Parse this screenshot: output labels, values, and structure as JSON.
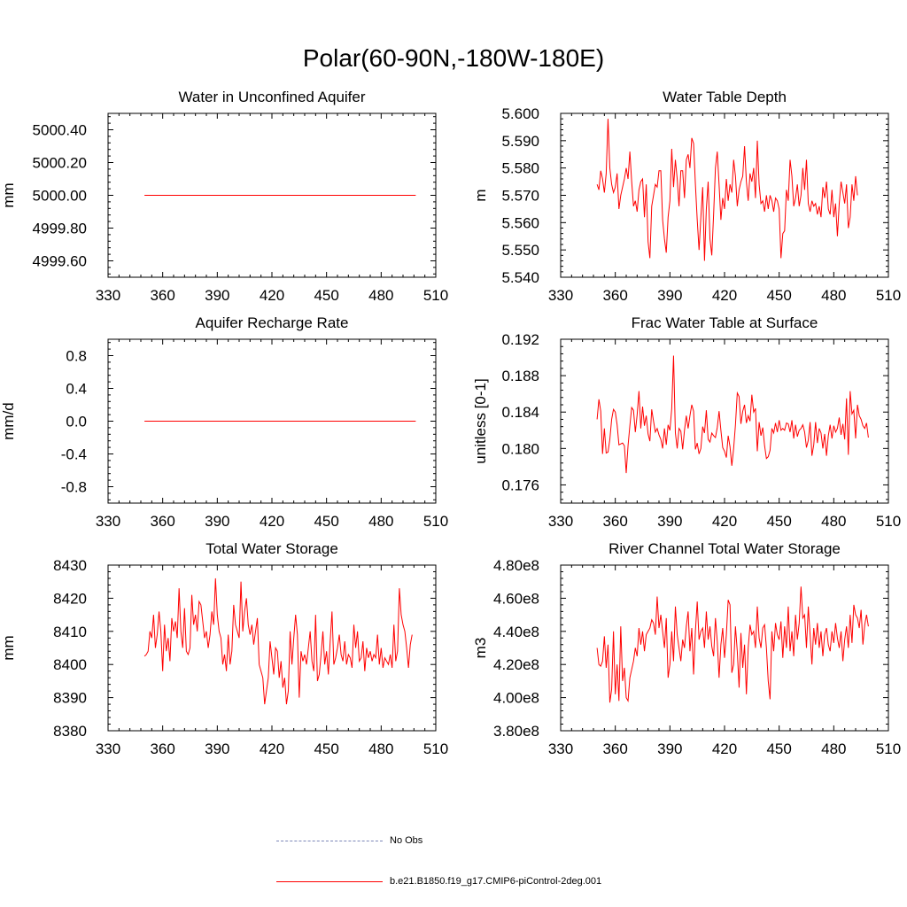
{
  "title": "Polar(60-90N,-180W-180E)",
  "legend": [
    {
      "label": "No Obs",
      "color": "#7b86b8",
      "style": "dashed"
    },
    {
      "label": "b.e21.B1850.f19_g17.CMIP6-piControl-2deg.001",
      "color": "#ff0000",
      "style": "solid"
    }
  ],
  "chart_data": [
    {
      "type": "line",
      "title": "Water in Unconfined Aquifer",
      "ylabel": "mm",
      "xlim": [
        330,
        510
      ],
      "ylim": [
        4999.5,
        5000.5
      ],
      "xticks": [
        330,
        360,
        390,
        420,
        450,
        480,
        510
      ],
      "xtick_labels": [
        "330",
        "360",
        "390",
        "420",
        "450",
        "480",
        "510"
      ],
      "yticks": [
        4999.6,
        4999.8,
        5000.0,
        5000.2,
        5000.4
      ],
      "ytick_labels": [
        "4999.60",
        "4999.80",
        "5000.00",
        "5000.20",
        "5000.40"
      ],
      "x_start": 350,
      "series": [
        {
          "name": "b.e21.B1850.f19_g17.CMIP6-piControl-2deg.001",
          "color": "#ff0000",
          "values": [
            5000.0,
            5000.0
          ]
        }
      ],
      "x": [
        350,
        499
      ]
    },
    {
      "type": "line",
      "title": "Water Table Depth",
      "ylabel": "m",
      "xlim": [
        330,
        510
      ],
      "ylim": [
        5.54,
        5.6
      ],
      "xticks": [
        330,
        360,
        390,
        420,
        450,
        480,
        510
      ],
      "xtick_labels": [
        "330",
        "360",
        "390",
        "420",
        "450",
        "480",
        "510"
      ],
      "yticks": [
        5.54,
        5.55,
        5.56,
        5.57,
        5.58,
        5.59,
        5.6
      ],
      "ytick_labels": [
        "5.540",
        "5.550",
        "5.560",
        "5.570",
        "5.580",
        "5.590",
        "5.600"
      ],
      "x_start": 350,
      "series": [
        {
          "name": "b.e21.B1850.f19_g17.CMIP6-piControl-2deg.001",
          "color": "#ff0000",
          "values": [
            5.574,
            5.572,
            5.579,
            5.576,
            5.571,
            5.578,
            5.598,
            5.58,
            5.574,
            5.571,
            5.573,
            5.578,
            5.565,
            5.57,
            5.573,
            5.576,
            5.58,
            5.576,
            5.586,
            5.575,
            5.566,
            5.568,
            5.564,
            5.572,
            5.575,
            5.576,
            5.562,
            5.574,
            5.553,
            5.547,
            5.566,
            5.57,
            5.574,
            5.573,
            5.579,
            5.579,
            5.561,
            5.554,
            5.549,
            5.562,
            5.568,
            5.587,
            5.573,
            5.583,
            5.576,
            5.566,
            5.579,
            5.579,
            5.569,
            5.583,
            5.585,
            5.58,
            5.591,
            5.589,
            5.574,
            5.561,
            5.55,
            5.562,
            5.573,
            5.546,
            5.565,
            5.575,
            5.554,
            5.548,
            5.563,
            5.58,
            5.586,
            5.574,
            5.561,
            5.569,
            5.565,
            5.576,
            5.568,
            5.574,
            5.571,
            5.583,
            5.577,
            5.566,
            5.572,
            5.575,
            5.577,
            5.588,
            5.575,
            5.568,
            5.578,
            5.575,
            5.58,
            5.569,
            5.59,
            5.574,
            5.567,
            5.568,
            5.564,
            5.57,
            5.565,
            5.57,
            5.568,
            5.564,
            5.569,
            5.568,
            5.565,
            5.547,
            5.556,
            5.557,
            5.572,
            5.568,
            5.583,
            5.577,
            5.566,
            5.569,
            5.574,
            5.566,
            5.57,
            5.58,
            5.572,
            5.583,
            5.567,
            5.564,
            5.568,
            5.566,
            5.567,
            5.563,
            5.566,
            5.562,
            5.573,
            5.569,
            5.575,
            5.565,
            5.563,
            5.572,
            5.562,
            5.567,
            5.555,
            5.567,
            5.575,
            5.571,
            5.567,
            5.574,
            5.558,
            5.562,
            5.574,
            5.568,
            5.577,
            5.57
          ]
        }
      ]
    },
    {
      "type": "line",
      "title": "Aquifer Recharge Rate",
      "ylabel": "mm/d",
      "xlim": [
        330,
        510
      ],
      "ylim": [
        -1.0,
        1.0
      ],
      "xticks": [
        330,
        360,
        390,
        420,
        450,
        480,
        510
      ],
      "xtick_labels": [
        "330",
        "360",
        "390",
        "420",
        "450",
        "480",
        "510"
      ],
      "yticks": [
        -0.8,
        -0.4,
        0.0,
        0.4,
        0.8
      ],
      "ytick_labels": [
        "-0.8",
        "-0.4",
        "0.0",
        "0.4",
        "0.8"
      ],
      "x_start": 350,
      "series": [
        {
          "name": "b.e21.B1850.f19_g17.CMIP6-piControl-2deg.001",
          "color": "#ff0000",
          "values": [
            0.0,
            0.0
          ]
        }
      ],
      "x": [
        350,
        499
      ]
    },
    {
      "type": "line",
      "title": "Frac Water Table at Surface",
      "ylabel": "unitless [0-1]",
      "xlim": [
        330,
        510
      ],
      "ylim": [
        0.174,
        0.192
      ],
      "xticks": [
        330,
        360,
        390,
        420,
        450,
        480,
        510
      ],
      "xtick_labels": [
        "330",
        "360",
        "390",
        "420",
        "450",
        "480",
        "510"
      ],
      "yticks": [
        0.176,
        0.18,
        0.184,
        0.188,
        0.192
      ],
      "ytick_labels": [
        "0.176",
        "0.180",
        "0.184",
        "0.188",
        "0.192"
      ],
      "x_start": 350,
      "series": [
        {
          "name": "b.e21.B1850.f19_g17.CMIP6-piControl-2deg.001",
          "color": "#ff0000",
          "values": [
            0.1832,
            0.1854,
            0.1841,
            0.1794,
            0.1822,
            0.1795,
            0.1796,
            0.181,
            0.1832,
            0.1843,
            0.184,
            0.1826,
            0.1804,
            0.1805,
            0.1806,
            0.1803,
            0.1773,
            0.1803,
            0.1825,
            0.1845,
            0.1842,
            0.1818,
            0.1837,
            0.1863,
            0.1822,
            0.1846,
            0.1825,
            0.1836,
            0.1816,
            0.1808,
            0.1843,
            0.183,
            0.1818,
            0.1822,
            0.1815,
            0.181,
            0.18,
            0.1822,
            0.1804,
            0.1826,
            0.182,
            0.1844,
            0.1902,
            0.1817,
            0.18,
            0.1822,
            0.1819,
            0.1799,
            0.182,
            0.1836,
            0.1822,
            0.1836,
            0.1848,
            0.1841,
            0.1799,
            0.1806,
            0.1794,
            0.18,
            0.1824,
            0.1817,
            0.1842,
            0.181,
            0.1807,
            0.1817,
            0.1814,
            0.1812,
            0.1823,
            0.1841,
            0.182,
            0.1801,
            0.1797,
            0.179,
            0.1814,
            0.1802,
            0.1781,
            0.18,
            0.1826,
            0.1861,
            0.1857,
            0.1827,
            0.1841,
            0.1848,
            0.1828,
            0.1836,
            0.183,
            0.1859,
            0.184,
            0.1844,
            0.1797,
            0.1829,
            0.1814,
            0.1823,
            0.1803,
            0.1789,
            0.1791,
            0.1798,
            0.1822,
            0.1817,
            0.1828,
            0.1818,
            0.1831,
            0.182,
            0.1822,
            0.182,
            0.1828,
            0.1827,
            0.1818,
            0.1831,
            0.1811,
            0.1826,
            0.1813,
            0.182,
            0.1822,
            0.1826,
            0.1818,
            0.1801,
            0.1809,
            0.1829,
            0.1792,
            0.1804,
            0.1829,
            0.1806,
            0.1822,
            0.1817,
            0.18,
            0.1816,
            0.1792,
            0.1814,
            0.1826,
            0.1811,
            0.1825,
            0.1818,
            0.1822,
            0.1834,
            0.1815,
            0.1827,
            0.181,
            0.1855,
            0.1793,
            0.1863,
            0.1838,
            0.1842,
            0.1811,
            0.1848,
            0.1836,
            0.1832,
            0.1825,
            0.1822,
            0.1828,
            0.1812
          ]
        }
      ]
    },
    {
      "type": "line",
      "title": "Total Water Storage",
      "ylabel": "mm",
      "xlim": [
        330,
        510
      ],
      "ylim": [
        8380,
        8430
      ],
      "xticks": [
        330,
        360,
        390,
        420,
        450,
        480,
        510
      ],
      "xtick_labels": [
        "330",
        "360",
        "390",
        "420",
        "450",
        "480",
        "510"
      ],
      "yticks": [
        8380,
        8390,
        8400,
        8410,
        8420,
        8430
      ],
      "ytick_labels": [
        "8380",
        "8390",
        "8400",
        "8410",
        "8420",
        "8430"
      ],
      "x_start": 350,
      "series": [
        {
          "name": "b.e21.B1850.f19_g17.CMIP6-piControl-2deg.001",
          "color": "#ff0000",
          "values": [
            8402.5,
            8403,
            8404,
            8410,
            8408,
            8415,
            8405,
            8409,
            8416,
            8410,
            8398,
            8412,
            8404,
            8408,
            8401,
            8414,
            8410,
            8413,
            8408,
            8423,
            8410,
            8405,
            8417,
            8404,
            8403,
            8405,
            8421,
            8412,
            8415,
            8410,
            8419,
            8418,
            8413,
            8408,
            8410,
            8405,
            8409,
            8416,
            8412,
            8426,
            8415,
            8410,
            8408,
            8400,
            8403,
            8398,
            8409,
            8400,
            8404,
            8418,
            8412,
            8410,
            8408,
            8425,
            8410,
            8416,
            8420,
            8412,
            8409,
            8412,
            8406,
            8410,
            8414,
            8400,
            8398,
            8396,
            8388,
            8392,
            8396,
            8407,
            8402,
            8397,
            8405,
            8404,
            8396,
            8401,
            8393,
            8396,
            8388,
            8392,
            8410,
            8400,
            8408,
            8415,
            8409,
            8390,
            8404,
            8401,
            8403,
            8400,
            8405,
            8410,
            8401,
            8398,
            8415,
            8395,
            8397,
            8403,
            8410,
            8400,
            8404,
            8397,
            8407,
            8416,
            8400,
            8402,
            8405,
            8409,
            8403,
            8401,
            8407,
            8400,
            8403,
            8402,
            8399,
            8412,
            8405,
            8410,
            8401,
            8402,
            8407,
            8398,
            8405,
            8402,
            8404,
            8401,
            8403,
            8402,
            8409,
            8400,
            8405,
            8399,
            8402,
            8401,
            8400,
            8403,
            8399,
            8412,
            8401,
            8404,
            8423,
            8415,
            8412,
            8410,
            8405,
            8399,
            8406,
            8409
          ]
        }
      ]
    },
    {
      "type": "line",
      "title": "River Channel Total Water Storage",
      "ylabel": "m3",
      "xlim": [
        330,
        510
      ],
      "ylim": [
        380000000.0,
        480000000.0
      ],
      "xticks": [
        330,
        360,
        390,
        420,
        450,
        480,
        510
      ],
      "xtick_labels": [
        "330",
        "360",
        "390",
        "420",
        "450",
        "480",
        "510"
      ],
      "yticks": [
        380000000.0,
        400000000.0,
        420000000.0,
        440000000.0,
        460000000.0,
        480000000.0
      ],
      "ytick_labels": [
        "3.80e8",
        "4.00e8",
        "4.20e8",
        "4.40e8",
        "4.60e8",
        "4.80e8"
      ],
      "x_start": 350,
      "series": [
        {
          "name": "b.e21.B1850.f19_g17.CMIP6-piControl-2deg.001",
          "color": "#ff0000",
          "values": [
            430000000.0,
            420000000.0,
            419000000.0,
            422000000.0,
            437000000.0,
            418000000.0,
            432000000.0,
            397000000.0,
            405000000.0,
            440000000.0,
            402000000.0,
            420000000.0,
            398000000.0,
            443000000.0,
            410000000.0,
            418000000.0,
            400000000.0,
            398000000.0,
            412000000.0,
            417000000.0,
            422000000.0,
            430000000.0,
            425000000.0,
            442000000.0,
            432000000.0,
            440000000.0,
            428000000.0,
            438000000.0,
            440000000.0,
            442000000.0,
            447000000.0,
            445000000.0,
            438000000.0,
            461000000.0,
            442000000.0,
            450000000.0,
            440000000.0,
            430000000.0,
            448000000.0,
            412000000.0,
            420000000.0,
            440000000.0,
            422000000.0,
            455000000.0,
            438000000.0,
            430000000.0,
            422000000.0,
            435000000.0,
            430000000.0,
            443000000.0,
            452000000.0,
            428000000.0,
            442000000.0,
            414000000.0,
            440000000.0,
            458000000.0,
            435000000.0,
            440000000.0,
            442000000.0,
            430000000.0,
            452000000.0,
            435000000.0,
            443000000.0,
            431000000.0,
            425000000.0,
            448000000.0,
            434000000.0,
            412000000.0,
            432000000.0,
            442000000.0,
            424000000.0,
            438000000.0,
            459000000.0,
            456000000.0,
            415000000.0,
            420000000.0,
            443000000.0,
            428000000.0,
            406000000.0,
            439000000.0,
            418000000.0,
            432000000.0,
            402000000.0,
            430000000.0,
            444000000.0,
            438000000.0,
            440000000.0,
            430000000.0,
            455000000.0,
            436000000.0,
            430000000.0,
            442000000.0,
            444000000.0,
            430000000.0,
            410000000.0,
            399000000.0,
            440000000.0,
            428000000.0,
            445000000.0,
            438000000.0,
            435000000.0,
            446000000.0,
            424000000.0,
            443000000.0,
            430000000.0,
            455000000.0,
            428000000.0,
            440000000.0,
            425000000.0,
            450000000.0,
            435000000.0,
            445000000.0,
            467000000.0,
            448000000.0,
            450000000.0,
            430000000.0,
            455000000.0,
            438000000.0,
            420000000.0,
            442000000.0,
            432000000.0,
            445000000.0,
            430000000.0,
            440000000.0,
            425000000.0,
            438000000.0,
            442000000.0,
            432000000.0,
            428000000.0,
            440000000.0,
            433000000.0,
            445000000.0,
            436000000.0,
            430000000.0,
            440000000.0,
            422000000.0,
            435000000.0,
            443000000.0,
            430000000.0,
            450000000.0,
            433000000.0,
            456000000.0,
            450000000.0,
            448000000.0,
            442000000.0,
            453000000.0,
            432000000.0,
            444000000.0,
            450000000.0,
            443000000.0
          ]
        }
      ]
    }
  ]
}
